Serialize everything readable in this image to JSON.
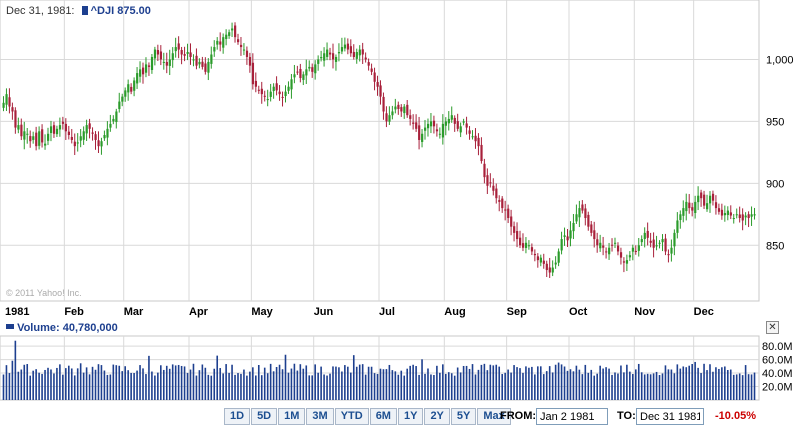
{
  "header": {
    "date": "Dec 31, 1981:",
    "symbol": "^DJI",
    "price": "875.00"
  },
  "copyright": "© 2011 Yahoo! Inc.",
  "volume_header": {
    "label": "Volume:",
    "value": "40,780,000"
  },
  "range_buttons": [
    "1D",
    "5D",
    "1M",
    "3M",
    "YTD",
    "6M",
    "1Y",
    "2Y",
    "5Y",
    "Max"
  ],
  "from": {
    "label": "FROM:",
    "value": "Jan 2 1981"
  },
  "to": {
    "label": "TO:",
    "value": "Dec 31 1981"
  },
  "change": "-10.05%",
  "colors": {
    "up": "#2b9b2b",
    "down": "#a8203a",
    "volume": "#1d3f8f",
    "grid": "#d9d9d9"
  },
  "chart_data": {
    "type": "candlestick",
    "price_axis": {
      "ticks": [
        850,
        900,
        950,
        1000
      ],
      "tick_labels": [
        "850",
        "900",
        "950",
        "1,000"
      ],
      "range": [
        805,
        1048
      ]
    },
    "volume_axis": {
      "ticks": [
        20,
        40,
        60,
        80
      ],
      "tick_labels": [
        "20.0M",
        "40.0M",
        "60.0M",
        "80.0M"
      ],
      "range": [
        0,
        95
      ],
      "unit": "M shares"
    },
    "x_labels": [
      "1981",
      "Feb",
      "Mar",
      "Apr",
      "May",
      "Jun",
      "Jul",
      "Aug",
      "Sep",
      "Oct",
      "Nov",
      "Dec"
    ],
    "months": [
      {
        "name": "Jan",
        "close": [
          965,
          972,
          962,
          958,
          945,
          947,
          938,
          942,
          940,
          934,
          938,
          930,
          942,
          933,
          932,
          940,
          946,
          940,
          944,
          947,
          948
        ]
      },
      {
        "name": "Feb",
        "close": [
          942,
          939,
          935,
          930,
          933,
          938,
          942,
          947,
          944,
          940,
          935,
          930,
          934,
          939,
          944,
          948,
          952,
          958,
          966,
          970
        ]
      },
      {
        "name": "Mar",
        "close": [
          975,
          980,
          974,
          983,
          989,
          992,
          988,
          996,
          994,
          1002,
          1008,
          1004,
          1000,
          998,
          995,
          1000,
          1005,
          1010,
          1008,
          1004,
          1003,
          1006
        ]
      },
      {
        "name": "Apr",
        "close": [
          1002,
          1000,
          995,
          998,
          994,
          990,
          998,
          1004,
          1010,
          1015,
          1012,
          1018,
          1020,
          1022,
          1025,
          1018,
          1014,
          1010,
          1008,
          1002,
          995
        ]
      },
      {
        "name": "May",
        "close": [
          980,
          978,
          975,
          972,
          970,
          968,
          974,
          978,
          975,
          972,
          969,
          974,
          978,
          984,
          988,
          990,
          985,
          988,
          992,
          994,
          990
        ]
      },
      {
        "name": "Jun",
        "close": [
          996,
          1000,
          1002,
          1005,
          1008,
          1004,
          1000,
          1002,
          1006,
          1010,
          1012,
          1008,
          1005,
          1002,
          1006,
          1008,
          1004,
          1000,
          995,
          990,
          982,
          978
        ]
      },
      {
        "name": "Jul",
        "close": [
          970,
          958,
          950,
          955,
          958,
          962,
          960,
          958,
          962,
          955,
          952,
          948,
          944,
          935,
          940,
          945,
          948,
          950,
          946,
          942,
          940,
          948
        ]
      },
      {
        "name": "Aug",
        "close": [
          950,
          952,
          955,
          948,
          944,
          946,
          950,
          945,
          940,
          938,
          934,
          930,
          918,
          905,
          898,
          900,
          894,
          888,
          885,
          880,
          878
        ]
      },
      {
        "name": "Sep",
        "close": [
          872,
          865,
          860,
          855,
          850,
          848,
          852,
          850,
          845,
          842,
          838,
          840,
          835,
          830,
          828,
          832,
          836,
          845,
          855,
          858,
          854
        ]
      },
      {
        "name": "Oct",
        "close": [
          862,
          868,
          875,
          880,
          878,
          872,
          865,
          860,
          855,
          850,
          852,
          848,
          845,
          848,
          850,
          852,
          845,
          840,
          836,
          838,
          842,
          848
        ]
      },
      {
        "name": "Nov",
        "close": [
          845,
          850,
          855,
          860,
          856,
          852,
          848,
          850,
          852,
          855,
          845,
          842,
          848,
          860,
          870,
          875,
          880,
          885,
          880,
          878
        ]
      },
      {
        "name": "Dec",
        "close": [
          885,
          890,
          888,
          882,
          884,
          890,
          886,
          880,
          877,
          874,
          876,
          878,
          874,
          872,
          875,
          872,
          870,
          874,
          872,
          875,
          875
        ]
      }
    ],
    "last_close": 875.0,
    "last_volume": 40780000
  }
}
